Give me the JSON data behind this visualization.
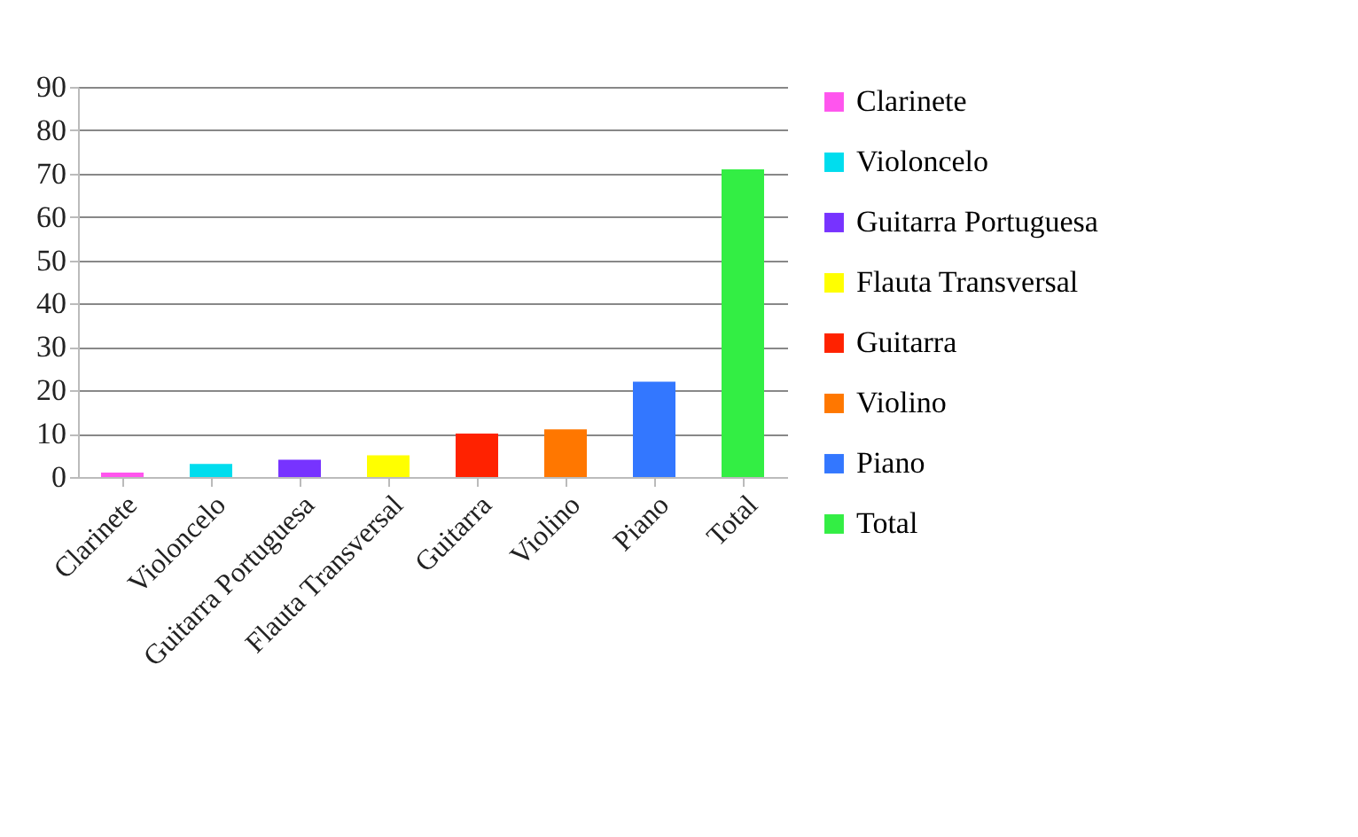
{
  "chart_data": {
    "type": "bar",
    "categories": [
      "Clarinete",
      "Violoncelo",
      "Guitarra Portuguesa",
      "Flauta Transversal",
      "Guitarra",
      "Violino",
      "Piano",
      "Total"
    ],
    "series": [
      {
        "name": "Clarinete",
        "color": "#ff55ee",
        "values": [
          1,
          null,
          null,
          null,
          null,
          null,
          null,
          null
        ]
      },
      {
        "name": "Violoncelo",
        "color": "#00ddee",
        "values": [
          null,
          3,
          null,
          null,
          null,
          null,
          null,
          null
        ]
      },
      {
        "name": "Guitarra Portuguesa",
        "color": "#7733ff",
        "values": [
          null,
          null,
          4,
          null,
          null,
          null,
          null,
          null
        ]
      },
      {
        "name": "Flauta Transversal",
        "color": "#ffff00",
        "values": [
          null,
          null,
          null,
          5,
          null,
          null,
          null,
          null
        ]
      },
      {
        "name": "Guitarra",
        "color": "#ff2200",
        "values": [
          null,
          null,
          null,
          null,
          10,
          null,
          null,
          null
        ]
      },
      {
        "name": "Violino",
        "color": "#ff7700",
        "values": [
          null,
          null,
          null,
          null,
          null,
          11,
          null,
          null
        ]
      },
      {
        "name": "Piano",
        "color": "#3377ff",
        "values": [
          null,
          null,
          null,
          null,
          null,
          null,
          22,
          null
        ]
      },
      {
        "name": "Total",
        "color": "#33ee44",
        "values": [
          null,
          null,
          null,
          null,
          null,
          null,
          null,
          71
        ]
      }
    ],
    "ylim": [
      0,
      90
    ],
    "yticks": [
      0,
      10,
      20,
      30,
      40,
      50,
      60,
      70,
      80,
      90
    ],
    "grid": "y",
    "legend": "right"
  }
}
